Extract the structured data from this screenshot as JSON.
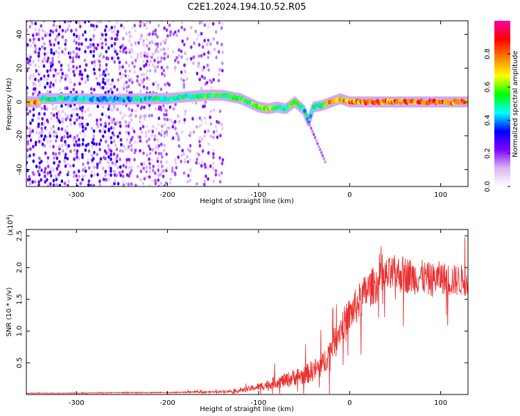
{
  "figure": {
    "title": "C2E1.2024.194.10.52.R05"
  },
  "chart_data": [
    {
      "type": "heatmap",
      "xlabel": "Height of straight line (km)",
      "ylabel": "Frequency (Hz)",
      "xlim": [
        -355,
        130
      ],
      "ylim": [
        -50,
        48
      ],
      "xticks": [
        -300,
        -200,
        -100,
        0,
        100
      ],
      "yticks": [
        -40,
        -20,
        0,
        20,
        40
      ],
      "colorbar": {
        "label": "Normalized spectral amplitude",
        "range": [
          0,
          1
        ],
        "ticks": [
          "0.0",
          "0.2",
          "0.4",
          "0.6",
          "0.8"
        ],
        "tick_values": [
          0.0,
          0.2,
          0.4,
          0.6,
          0.8
        ],
        "colormap": [
          "#ffffff",
          "#d9b8f0",
          "#8000ff",
          "#0000ff",
          "#00ffff",
          "#00ff00",
          "#ffff00",
          "#ff8000",
          "#ff0000",
          "#ff00a0"
        ]
      },
      "ridge": [
        {
          "x": -340,
          "freq": 2,
          "amp": 0.55
        },
        {
          "x": -300,
          "freq": 2,
          "amp": 0.5
        },
        {
          "x": -260,
          "freq": 1.5,
          "amp": 0.45
        },
        {
          "x": -220,
          "freq": 2,
          "amp": 0.5
        },
        {
          "x": -200,
          "freq": 2,
          "amp": 0.55
        },
        {
          "x": -180,
          "freq": 3,
          "amp": 0.55
        },
        {
          "x": -160,
          "freq": 4,
          "amp": 0.6
        },
        {
          "x": -140,
          "freq": 4,
          "amp": 0.6
        },
        {
          "x": -120,
          "freq": 2,
          "amp": 0.6
        },
        {
          "x": -100,
          "freq": -3,
          "amp": 0.65
        },
        {
          "x": -90,
          "freq": -4,
          "amp": 0.7
        },
        {
          "x": -80,
          "freq": -3,
          "amp": 0.6
        },
        {
          "x": -70,
          "freq": -4,
          "amp": 0.55
        },
        {
          "x": -60,
          "freq": 0,
          "amp": 0.65
        },
        {
          "x": -50,
          "freq": -5,
          "amp": 0.5
        },
        {
          "x": -45,
          "freq": -12,
          "amp": 0.5
        },
        {
          "x": -40,
          "freq": -3,
          "amp": 0.5
        },
        {
          "x": -30,
          "freq": -2,
          "amp": 0.6
        },
        {
          "x": -20,
          "freq": 0,
          "amp": 0.85
        },
        {
          "x": -10,
          "freq": 2,
          "amp": 0.8
        },
        {
          "x": 0,
          "freq": 0,
          "amp": 0.85
        },
        {
          "x": 25,
          "freq": 0,
          "amp": 0.9
        },
        {
          "x": 50,
          "freq": 0,
          "amp": 0.88
        },
        {
          "x": 75,
          "freq": 0,
          "amp": 0.92
        },
        {
          "x": 100,
          "freq": 0,
          "amp": 0.9
        },
        {
          "x": 125,
          "freq": 0,
          "amp": 0.9
        }
      ]
    },
    {
      "type": "line",
      "xlabel": "Height of straight line (km)",
      "ylabel": "SNR (10 * v/v)",
      "yscale_label": "(x10",
      "yscale_exp": "4",
      "yscale_close": ")",
      "xlim": [
        -355,
        130
      ],
      "ylim": [
        0,
        2.6
      ],
      "xticks": [
        -300,
        -200,
        -100,
        0,
        100
      ],
      "yticks": [
        0.5,
        1.0,
        1.5,
        2.0,
        2.5
      ],
      "ytick_labels": [
        "0.5",
        "1.0",
        "1.5",
        "2.0",
        "2.5"
      ],
      "series_color": "#e8312f",
      "x": [
        -355,
        -300,
        -250,
        -200,
        -150,
        -120,
        -100,
        -90,
        -80,
        -70,
        -60,
        -50,
        -40,
        -30,
        -20,
        -10,
        0,
        10,
        20,
        30,
        40,
        50,
        60,
        70,
        80,
        90,
        100,
        110,
        120,
        130
      ],
      "y": [
        0.02,
        0.02,
        0.03,
        0.03,
        0.04,
        0.06,
        0.12,
        0.16,
        0.2,
        0.22,
        0.28,
        0.3,
        0.38,
        0.45,
        0.75,
        1.05,
        1.25,
        1.45,
        1.65,
        1.75,
        1.85,
        1.9,
        1.9,
        1.85,
        1.85,
        1.8,
        1.85,
        1.8,
        1.8,
        1.8
      ],
      "noise": [
        0.005,
        0.006,
        0.008,
        0.01,
        0.015,
        0.03,
        0.06,
        0.08,
        0.1,
        0.12,
        0.14,
        0.15,
        0.18,
        0.2,
        0.22,
        0.25,
        0.28,
        0.3,
        0.3,
        0.3,
        0.3,
        0.3,
        0.3,
        0.28,
        0.27,
        0.27,
        0.26,
        0.26,
        0.25,
        0.25
      ]
    }
  ]
}
